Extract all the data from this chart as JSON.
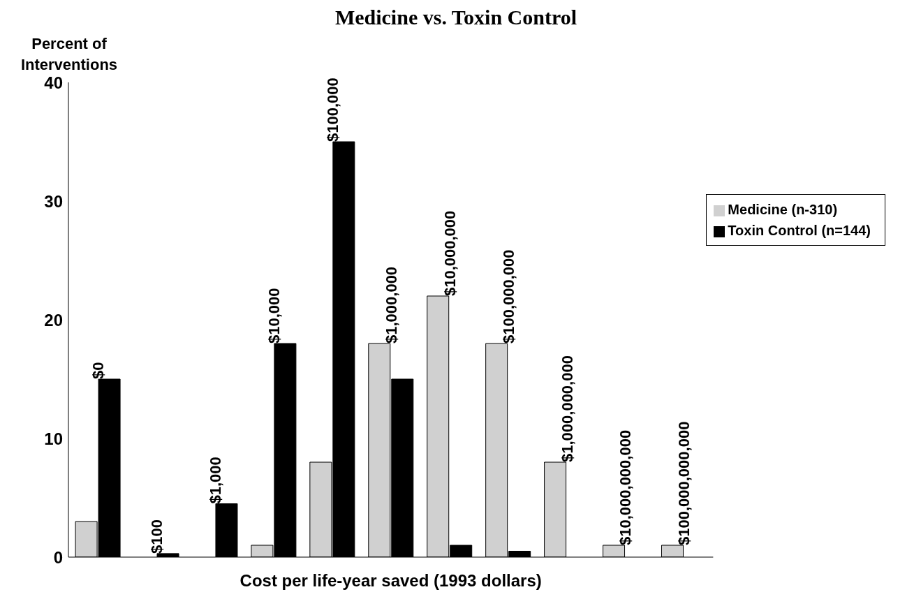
{
  "chart_data": {
    "type": "bar",
    "title": "Medicine vs. Toxin Control",
    "ylabel": "Percent of Interventions",
    "xlabel": "Cost per life-year saved (1993 dollars)",
    "categories": [
      "$0",
      "$100",
      "$1,000",
      "$10,000",
      "$100,000",
      "$1,000,000",
      "$10,000,000",
      "$100,000,000",
      "$1,000,000,000",
      "$10,000,000,000",
      "$100,000,000,000"
    ],
    "series": [
      {
        "name": "Medicine (n-310)",
        "color": "#d0d0d0",
        "values": [
          3,
          0,
          0,
          1,
          8,
          18,
          22,
          18,
          8,
          1,
          1
        ]
      },
      {
        "name": "Toxin Control (n=144)",
        "color": "#000000",
        "values": [
          15,
          0.3,
          4.5,
          18,
          35,
          15,
          1,
          0.5,
          0,
          0,
          0
        ]
      }
    ],
    "ylim": [
      0,
      40
    ],
    "yticks": [
      0,
      10,
      20,
      30,
      40
    ],
    "legend": "top right"
  }
}
